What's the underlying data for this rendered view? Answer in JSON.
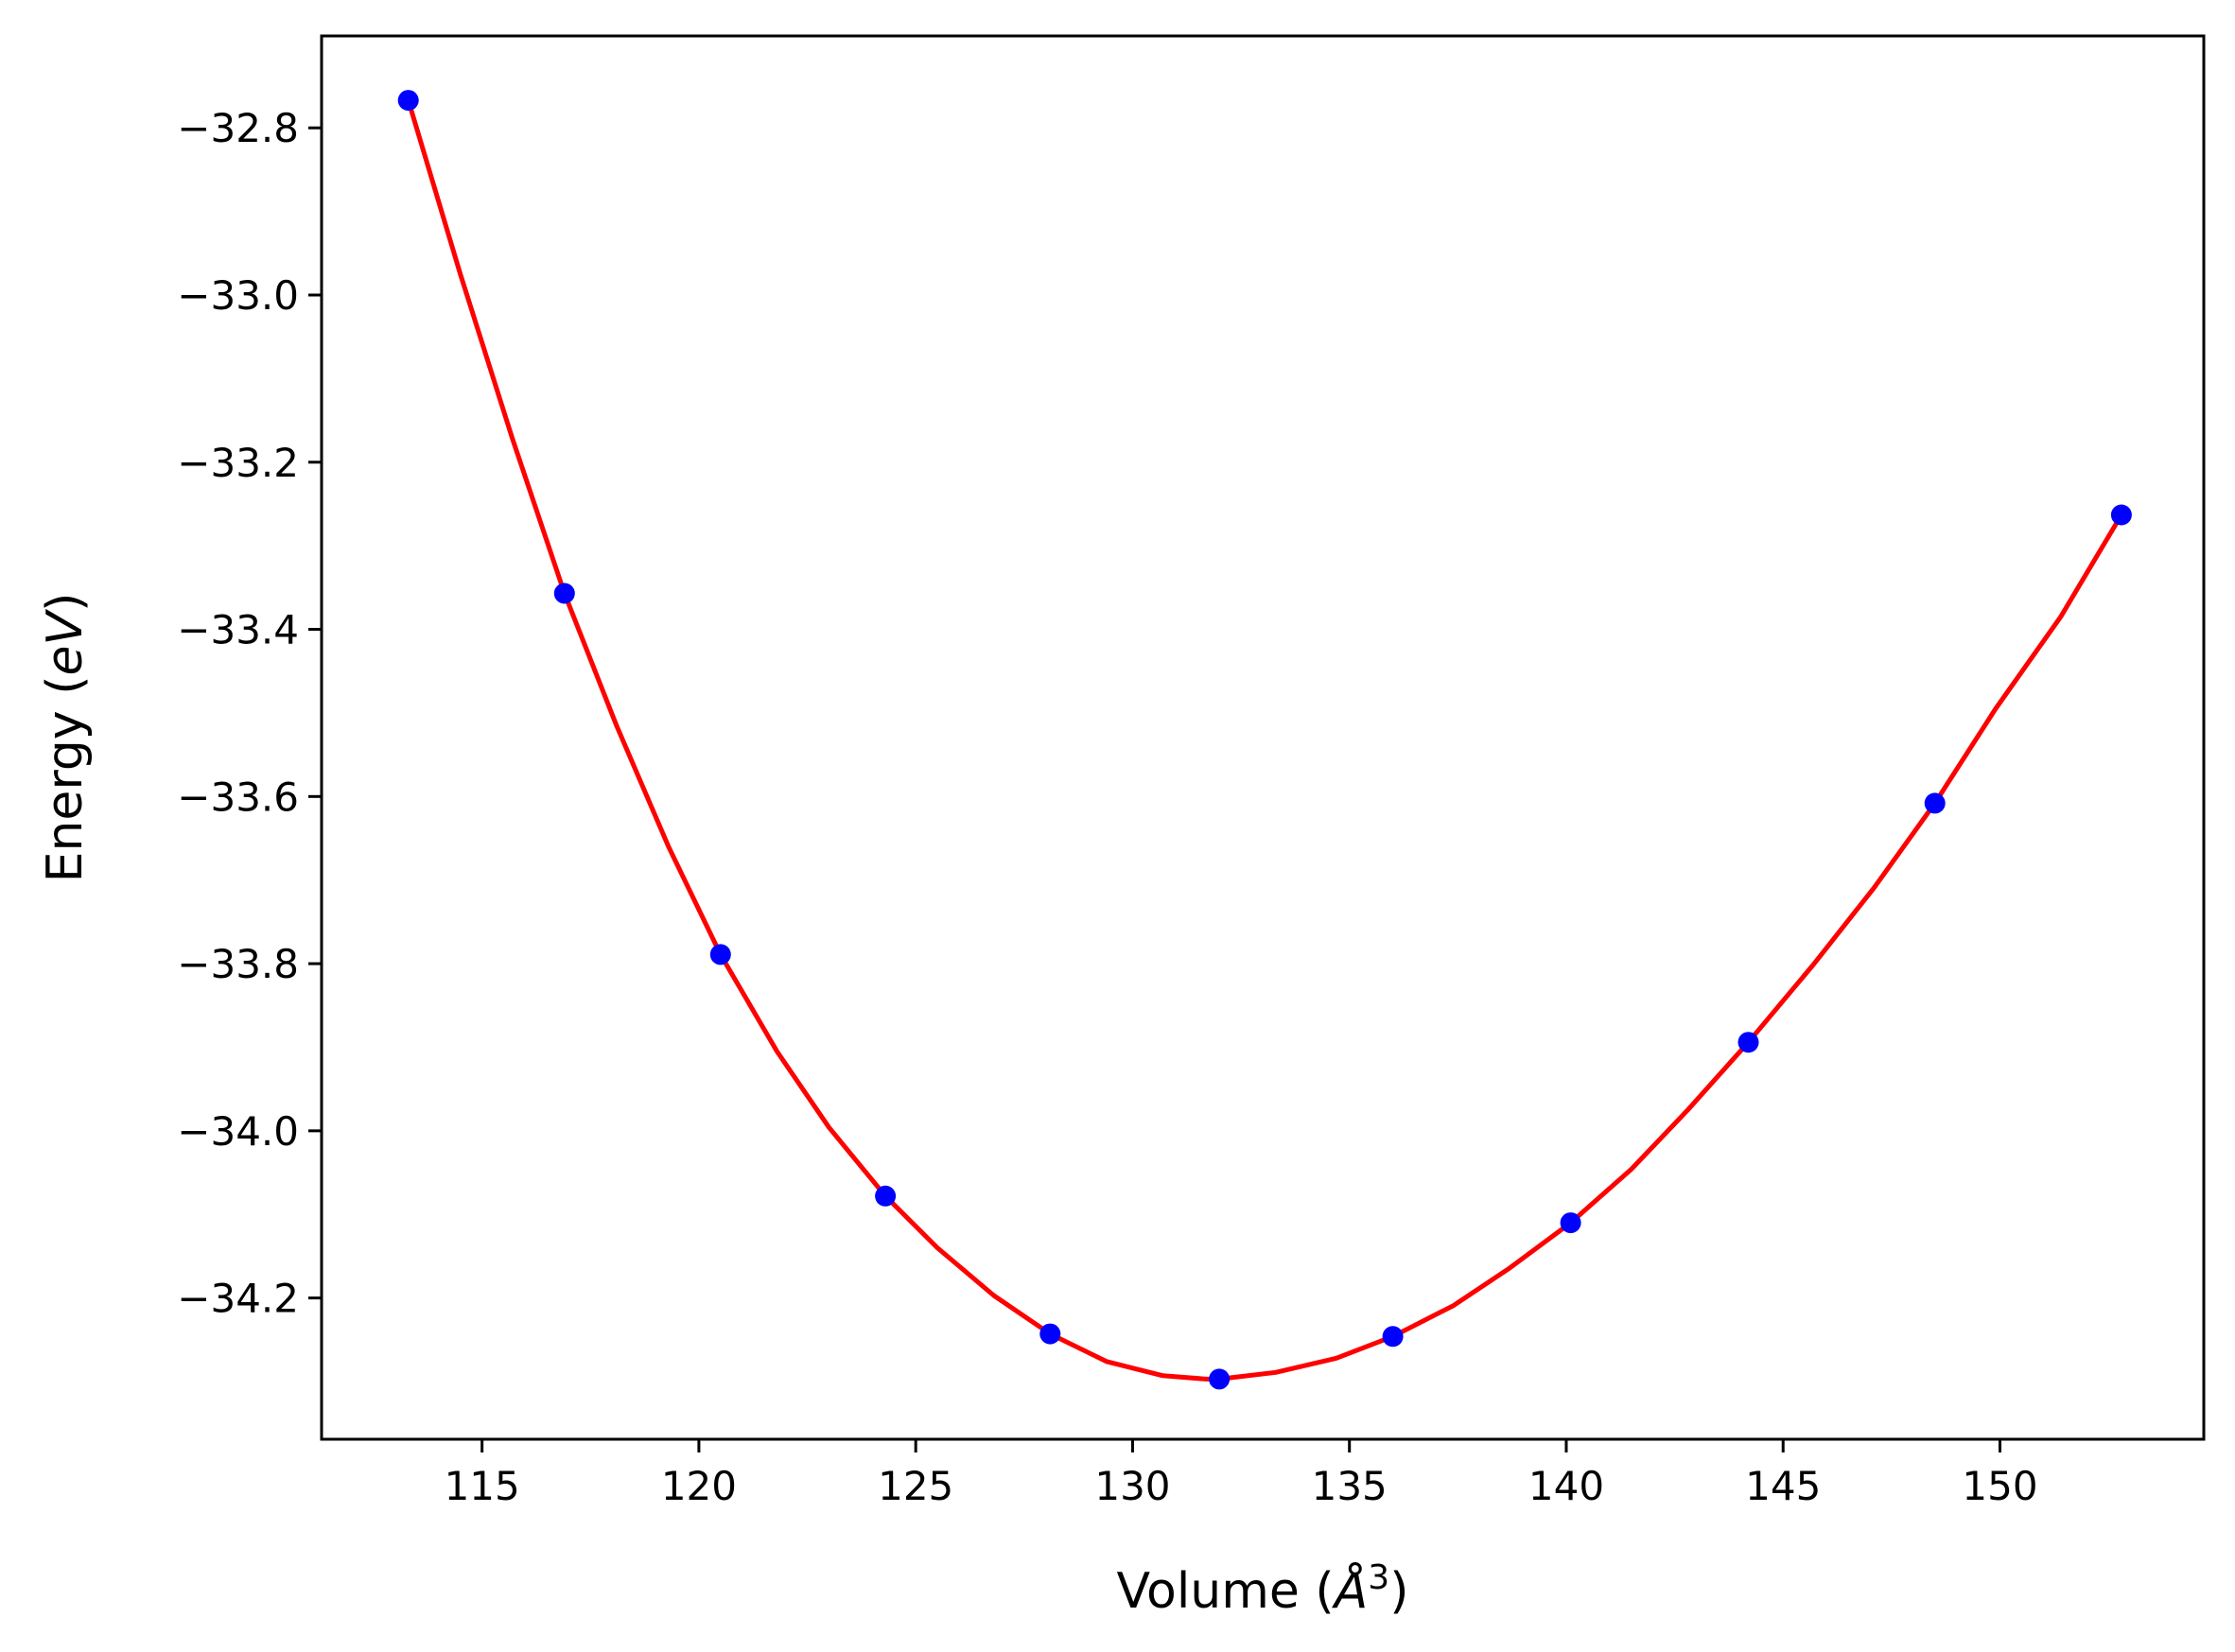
{
  "chart_data": {
    "type": "scatter",
    "xlabel_text": "Volume (",
    "xlabel_symbol": "Å",
    "xlabel_exp": "3",
    "xlabel_close": ")",
    "ylabel_text": "Energy (",
    "ylabel_symbol": "eV",
    "ylabel_close": ")",
    "xlim": [
      111.3,
      154.7
    ],
    "ylim": [
      -34.369,
      -32.69
    ],
    "x_ticks": [
      115,
      120,
      125,
      130,
      135,
      140,
      145,
      150
    ],
    "x_tick_labels": [
      "115",
      "120",
      "125",
      "130",
      "135",
      "140",
      "145",
      "150"
    ],
    "y_ticks": [
      -32.8,
      -33.0,
      -33.2,
      -33.4,
      -33.6,
      -33.8,
      -34.0,
      -34.2
    ],
    "y_tick_labels": [
      "−32.8",
      "−33.0",
      "−33.2",
      "−33.4",
      "−33.6",
      "−33.8",
      "−34.0",
      "−34.2"
    ],
    "grid": false,
    "series": [
      {
        "kind": "points",
        "color": "#0000ff",
        "x": [
          113.3,
          116.9,
          120.5,
          124.3,
          128.1,
          132.0,
          136.0,
          140.1,
          144.2,
          148.5,
          152.8
        ],
        "y": [
          -32.767,
          -33.357,
          -33.789,
          -34.078,
          -34.243,
          -34.297,
          -34.246,
          -34.11,
          -33.894,
          -33.608,
          -33.263
        ]
      },
      {
        "kind": "fit-line",
        "color": "#ff0000",
        "x": [
          113.3,
          114.5,
          115.7,
          116.9,
          118.1,
          119.3,
          120.5,
          121.8,
          123.0,
          124.3,
          125.5,
          126.8,
          128.1,
          129.4,
          130.7,
          131.7,
          132.0,
          133.3,
          134.7,
          136.0,
          137.4,
          138.7,
          140.1,
          141.5,
          142.8,
          144.2,
          145.7,
          147.1,
          148.5,
          149.9,
          151.4,
          152.8
        ],
        "y": [
          -32.767,
          -32.975,
          -33.172,
          -33.357,
          -33.515,
          -33.66,
          -33.789,
          -33.905,
          -33.996,
          -34.078,
          -34.14,
          -34.197,
          -34.243,
          -34.276,
          -34.293,
          -34.297,
          -34.297,
          -34.289,
          -34.272,
          -34.246,
          -34.209,
          -34.164,
          -34.11,
          -34.046,
          -33.975,
          -33.894,
          -33.801,
          -33.709,
          -33.608,
          -33.495,
          -33.385,
          -33.263
        ]
      }
    ]
  }
}
